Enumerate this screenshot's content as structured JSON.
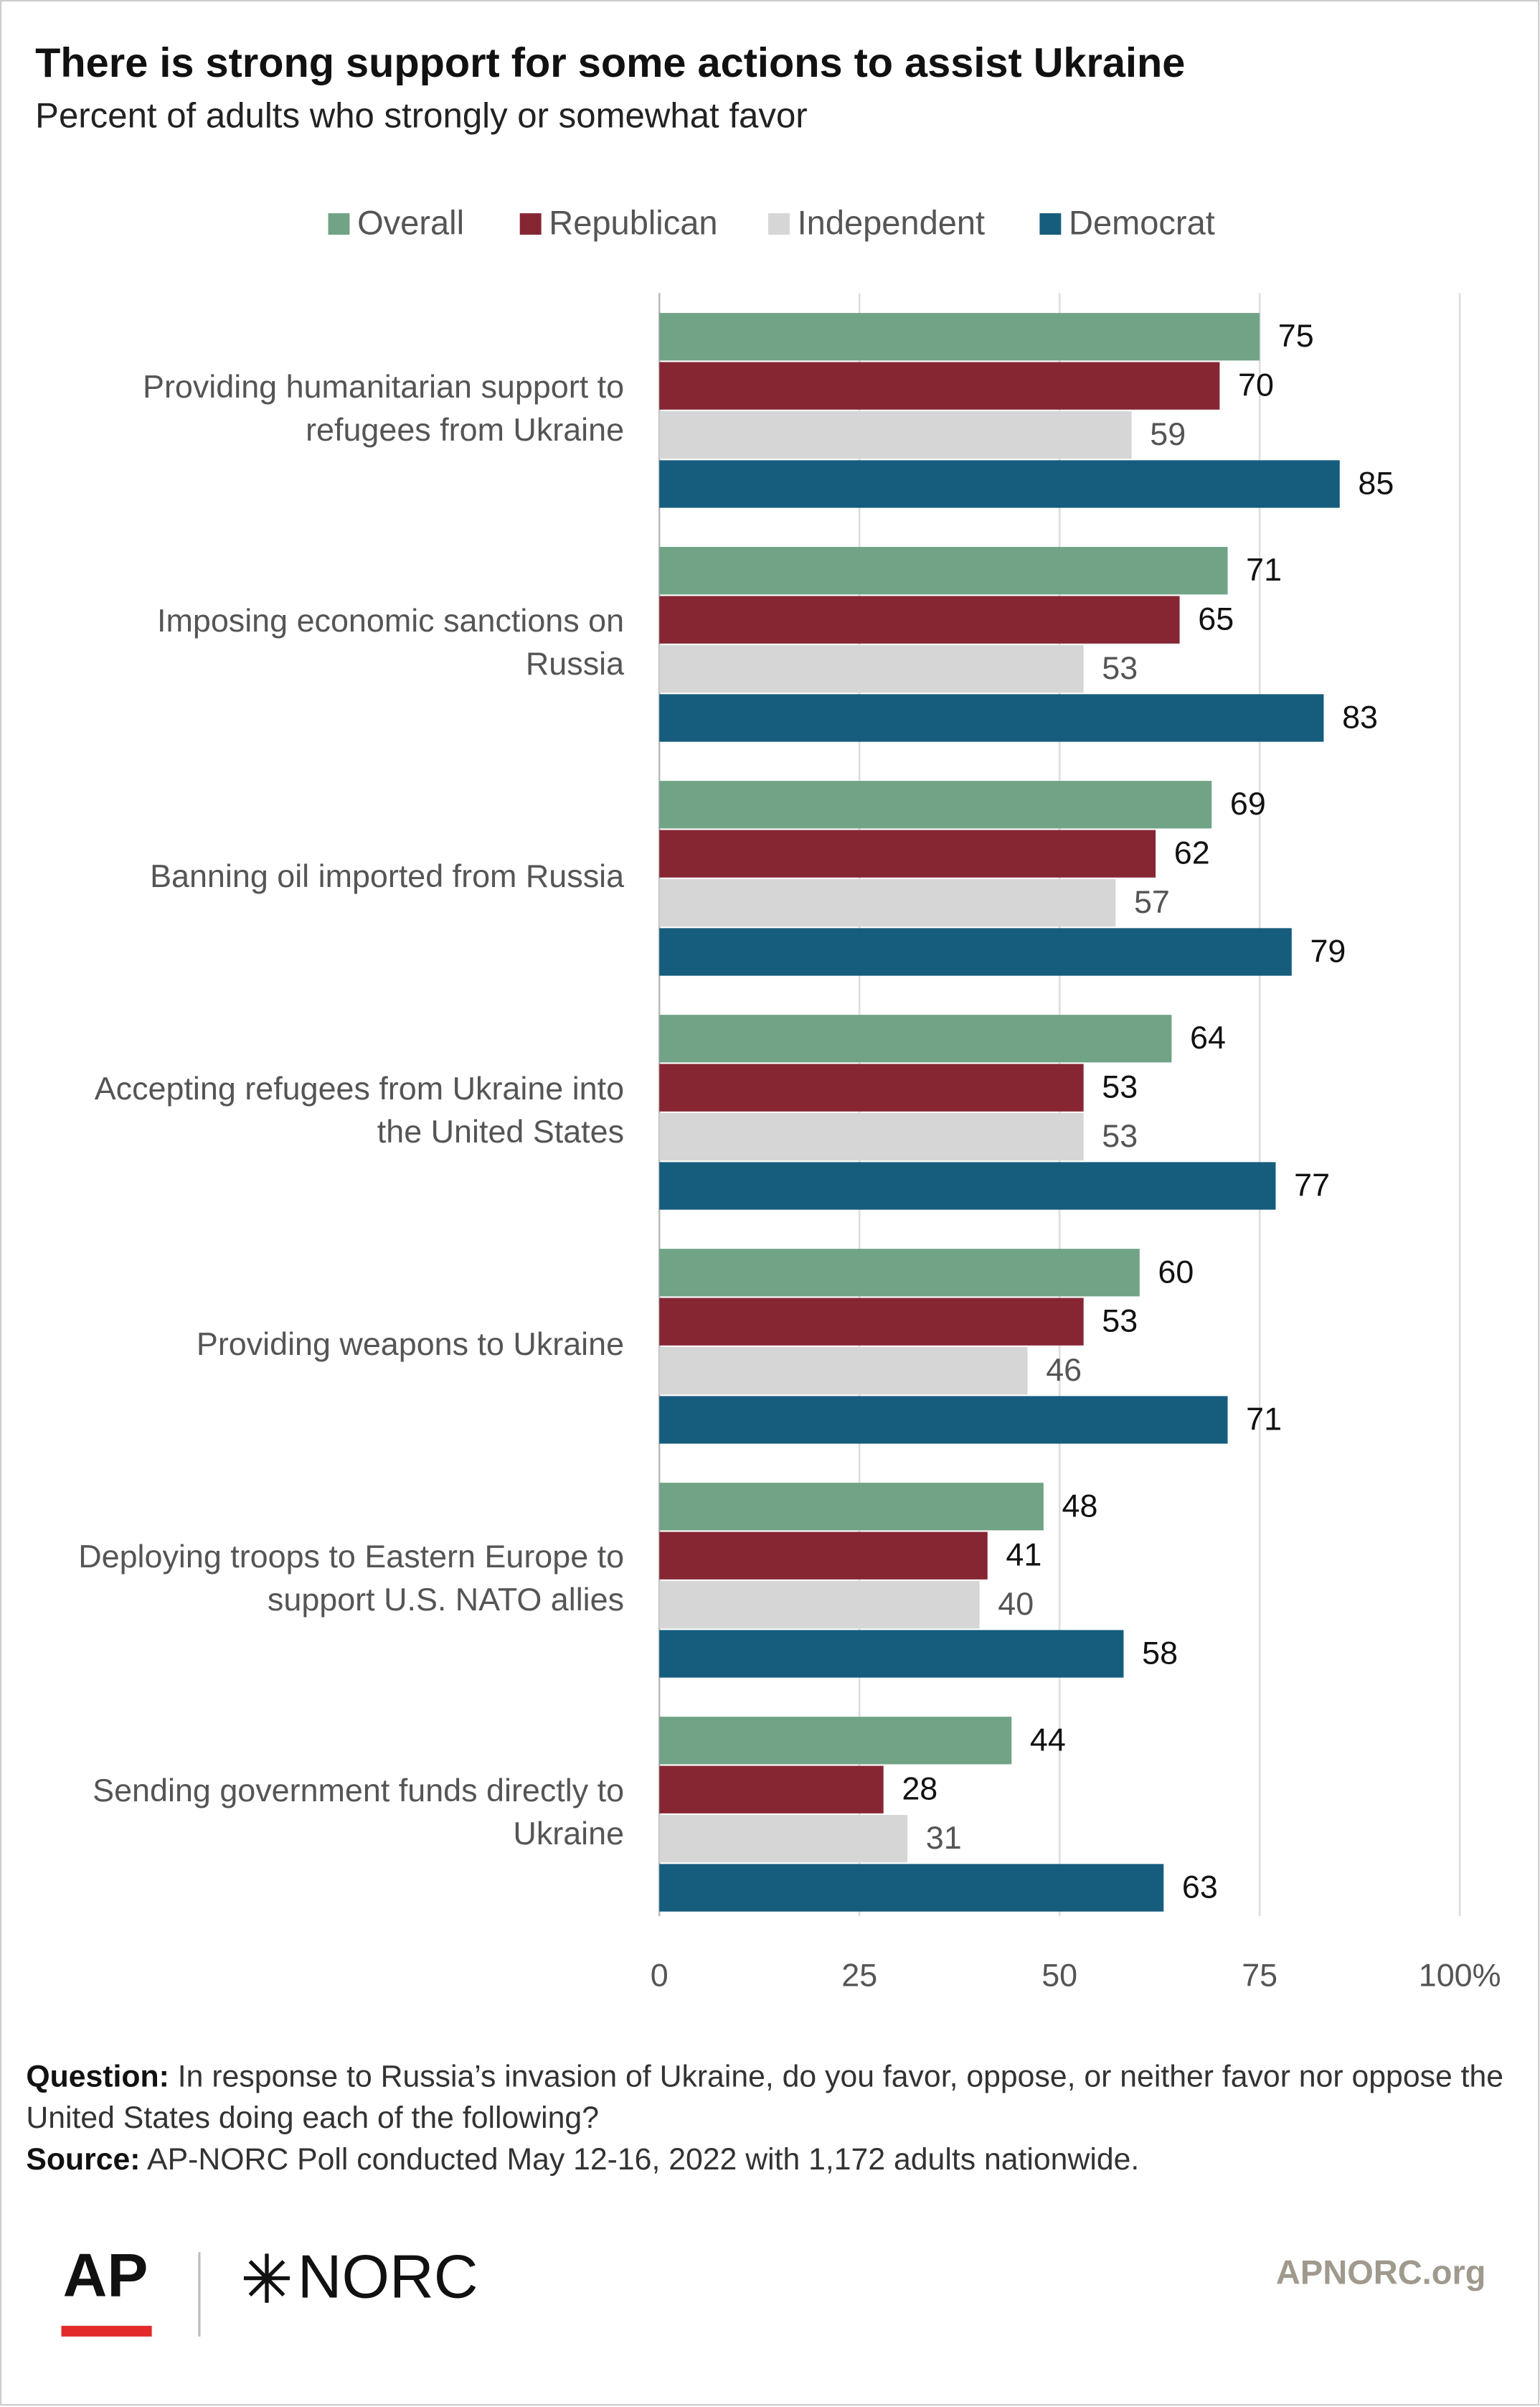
{
  "chart_data": {
    "type": "barh",
    "title": "There is strong support for some actions to assist Ukraine",
    "subtitle": "Percent of adults who strongly or somewhat favor",
    "categories": [
      [
        "Providing humanitarian support to",
        "refugees from Ukraine"
      ],
      [
        "Imposing economic sanctions on",
        "Russia"
      ],
      [
        "Banning oil imported from Russia"
      ],
      [
        "Accepting refugees from Ukraine into",
        "the United States"
      ],
      [
        "Providing weapons to Ukraine"
      ],
      [
        "Deploying troops to Eastern Europe to",
        "support U.S. NATO allies"
      ],
      [
        "Sending government funds directly to",
        "Ukraine"
      ]
    ],
    "series": [
      {
        "name": "Overall",
        "color": "#71a386",
        "values": [
          75,
          71,
          69,
          64,
          60,
          48,
          44
        ]
      },
      {
        "name": "Republican",
        "color": "#862633",
        "values": [
          70,
          65,
          62,
          53,
          53,
          41,
          28
        ]
      },
      {
        "name": "Independent",
        "color": "#d6d6d6",
        "values": [
          59,
          53,
          57,
          53,
          46,
          40,
          31
        ]
      },
      {
        "name": "Democrat",
        "color": "#165c7d",
        "values": [
          85,
          83,
          79,
          77,
          71,
          58,
          63
        ]
      }
    ],
    "xlim": [
      0,
      100
    ],
    "xticks": [
      0,
      25,
      50,
      75,
      {
        "value": 100,
        "label": "100%"
      }
    ],
    "grid": true,
    "legend": "top"
  },
  "footer": {
    "question_label": "Question:",
    "question_text": "In response to Russia’s invasion of Ukraine, do you favor, oppose, or neither favor nor oppose the United States doing each of the following?",
    "source_label": "Source:",
    "source_text": "AP-NORC Poll conducted May 12-16, 2022 with 1,172 adults nationwide.",
    "logo_ap": "AP",
    "logo_norc": "NORC",
    "website": "APNORC.org"
  }
}
